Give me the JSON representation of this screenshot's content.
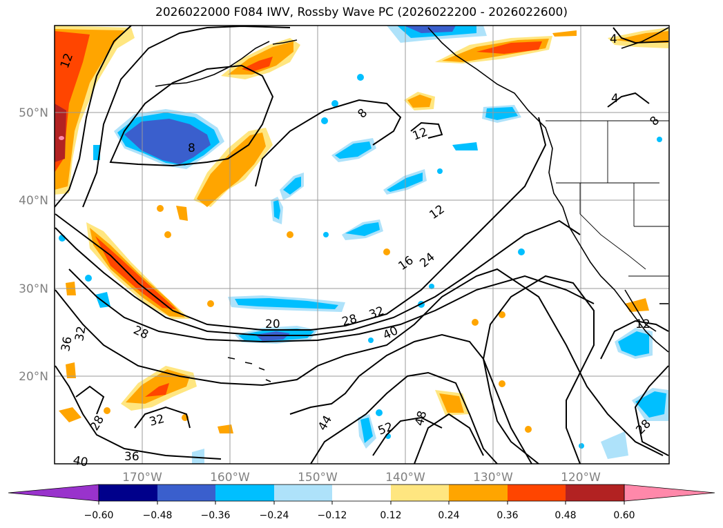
{
  "title": "2026022000 F084 IWV, Rossby Wave PC (2026022200 - 2026022600)",
  "map": {
    "lon_range": [
      -180,
      -110
    ],
    "lat_range": [
      10,
      60
    ],
    "lat_labels": [
      "20°N",
      "30°N",
      "40°N",
      "50°N"
    ],
    "lon_labels": [
      "170°W",
      "160°W",
      "150°W",
      "140°W",
      "130°W",
      "120°W"
    ]
  },
  "colorbar": {
    "levels": [
      "-0.60",
      "-0.48",
      "-0.36",
      "-0.24",
      "-0.12",
      "0.12",
      "0.24",
      "0.36",
      "0.48",
      "0.60"
    ],
    "colors": [
      "#9933cc",
      "#00008b",
      "#3a5fcd",
      "#00bfff",
      "#aee2fa",
      "#ffffff",
      "#ffe680",
      "#ffa500",
      "#ff4500",
      "#b22222",
      "#ff88aa"
    ]
  },
  "contour_labels": [
    "12",
    "8",
    "8",
    "12",
    "12",
    "16",
    "24",
    "20",
    "28",
    "32",
    "40",
    "28",
    "36",
    "32",
    "28",
    "32",
    "36",
    "40",
    "44",
    "52",
    "48",
    "4",
    "4",
    "8",
    "12",
    "28"
  ]
}
